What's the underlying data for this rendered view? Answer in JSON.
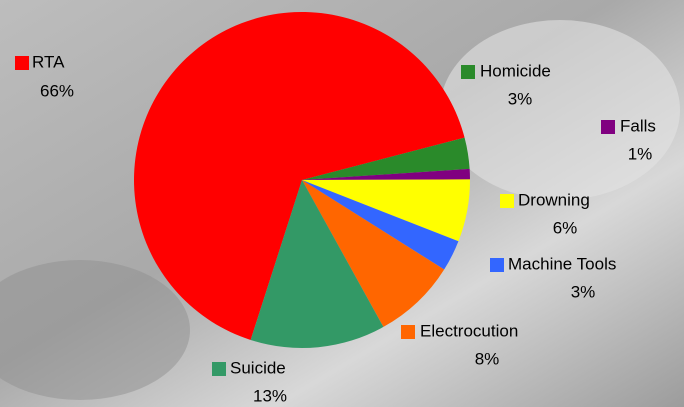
{
  "chart_data": {
    "type": "pie",
    "categories": [
      "RTA",
      "Homicide",
      "Falls",
      "Drowning",
      "Machine Tools",
      "Electrocution",
      "Suicide"
    ],
    "values": [
      66,
      3,
      1,
      6,
      3,
      8,
      13
    ],
    "value_labels": [
      "66%",
      "3%",
      "1%",
      "6%",
      "3%",
      "8%",
      "13%"
    ],
    "colors": [
      "#ff0000",
      "#2a8a2a",
      "#800080",
      "#ffff00",
      "#3366ff",
      "#ff6600",
      "#339966"
    ]
  }
}
